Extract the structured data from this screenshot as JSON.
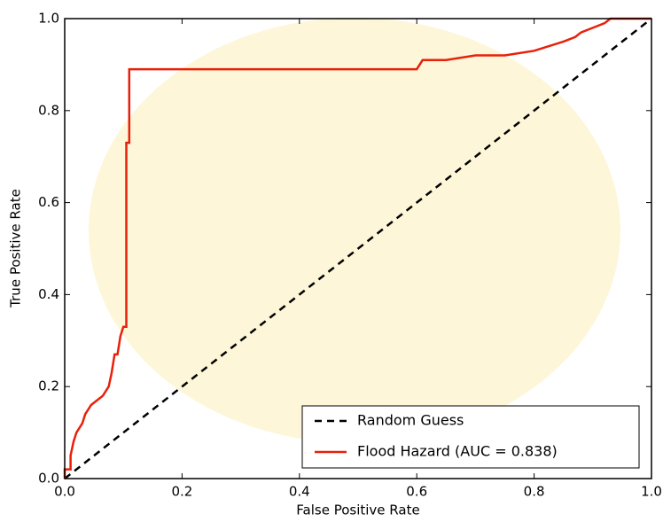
{
  "chart_data": {
    "type": "line",
    "xlabel": "False Positive Rate",
    "ylabel": "True Positive Rate",
    "xlim": [
      0,
      1
    ],
    "ylim": [
      0,
      1
    ],
    "xticks": [
      {
        "value": 0,
        "label": "0.0"
      },
      0.2,
      0.4,
      0.6,
      0.8,
      {
        "value": 1,
        "label": "1.0"
      }
    ],
    "yticks": [
      {
        "value": 0,
        "label": "0.0"
      },
      0.2,
      0.4,
      0.6,
      0.8,
      {
        "value": 1,
        "label": "1.0"
      }
    ],
    "legend": "lower right",
    "series": [
      {
        "name": "Random Guess",
        "color": "#000000",
        "style": "dashed",
        "x": [
          0,
          1
        ],
        "values": [
          0,
          1
        ]
      },
      {
        "name": "Flood Hazard (AUC = 0.838)",
        "color": "#e8200a",
        "style": "solid",
        "x": [
          0,
          0,
          0.01,
          0.01,
          0.015,
          0.02,
          0.03,
          0.035,
          0.045,
          0.055,
          0.065,
          0.075,
          0.08,
          0.085,
          0.09,
          0.095,
          0.1,
          0.105,
          0.105,
          0.11,
          0.11,
          0.6,
          0.61,
          0.65,
          0.7,
          0.75,
          0.8,
          0.85,
          0.87,
          0.88,
          0.9,
          0.92,
          0.93,
          1
        ],
        "values": [
          0,
          0.02,
          0.02,
          0.05,
          0.08,
          0.1,
          0.12,
          0.14,
          0.16,
          0.17,
          0.18,
          0.2,
          0.23,
          0.27,
          0.27,
          0.31,
          0.33,
          0.33,
          0.73,
          0.73,
          0.89,
          0.89,
          0.91,
          0.91,
          0.92,
          0.92,
          0.93,
          0.95,
          0.96,
          0.97,
          0.98,
          0.99,
          1,
          1
        ]
      }
    ]
  }
}
